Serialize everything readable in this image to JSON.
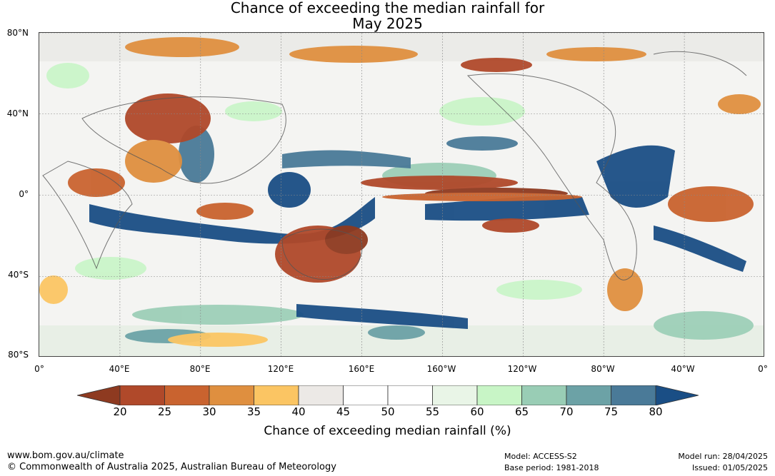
{
  "title": {
    "line1": "Chance of exceeding the median rainfall for",
    "line2": "May 2025"
  },
  "map": {
    "lat_labels": [
      "80°N",
      "40°N",
      "0°",
      "40°S",
      "80°S"
    ],
    "lon_labels": [
      "0°",
      "40°E",
      "80°E",
      "120°E",
      "160°E",
      "160°W",
      "120°W",
      "80°W",
      "40°W",
      "0°"
    ]
  },
  "colorbar": {
    "ticks": [
      "20",
      "25",
      "30",
      "35",
      "40",
      "45",
      "50",
      "55",
      "60",
      "65",
      "70",
      "75",
      "80"
    ],
    "colors": [
      "#8e3a20",
      "#b0492a",
      "#c9632f",
      "#df8f3f",
      "#fbc563",
      "#ece9e6",
      "#ffffff",
      "#ffffff",
      "#e9f5e7",
      "#c8f5c6",
      "#99cdb5",
      "#6ca2a6",
      "#4a7a98",
      "#1a4e85"
    ],
    "label": "Chance of exceeding median rainfall (%)"
  },
  "footer": {
    "url": "www.bom.gov.au/climate",
    "copyright": "© Commonwealth of Australia 2025, Australian Bureau of Meteorology",
    "model": "Model: ACCESS-S2",
    "base_period": "Base period: 1981-2018",
    "model_run": "Model run: 28/04/2025",
    "issued": "Issued: 01/05/2025"
  }
}
